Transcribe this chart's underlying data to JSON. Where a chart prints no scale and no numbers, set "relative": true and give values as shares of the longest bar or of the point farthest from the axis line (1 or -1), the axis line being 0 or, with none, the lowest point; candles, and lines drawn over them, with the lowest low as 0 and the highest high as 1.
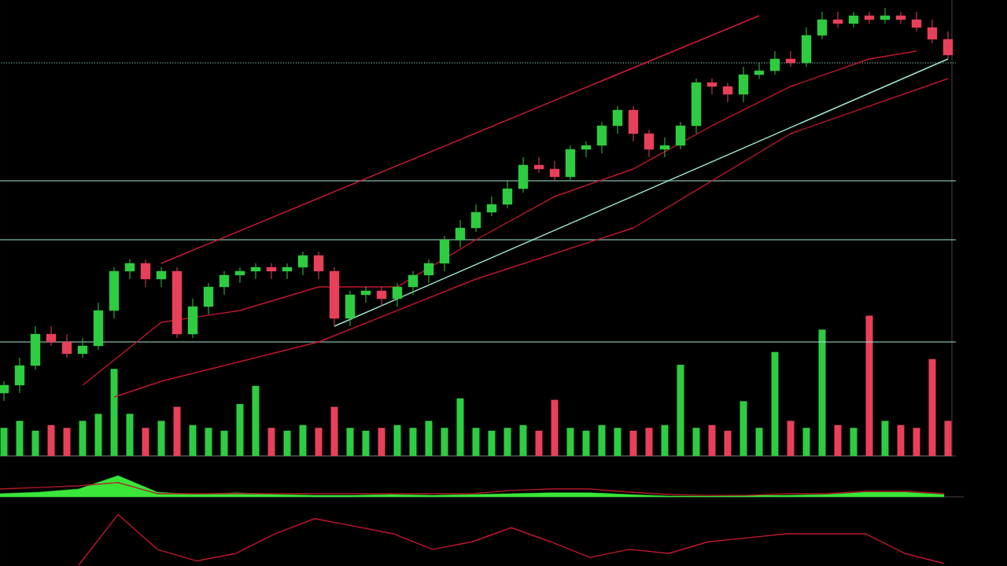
{
  "chart_data": [
    {
      "type": "candlestick",
      "relative": true,
      "categories": [
        null,
        null,
        null,
        null,
        null,
        null,
        null,
        null,
        null,
        null,
        null,
        null,
        null,
        null,
        null,
        null,
        null,
        null,
        null,
        null,
        null,
        null,
        null,
        null,
        null,
        null,
        null,
        null,
        null,
        null,
        null,
        null,
        null,
        null,
        null,
        null,
        null,
        null,
        null,
        null,
        null,
        null,
        null,
        null,
        null,
        null,
        null,
        null,
        null,
        null,
        null,
        null,
        null,
        null,
        null,
        null,
        null,
        null,
        null,
        null,
        null
      ],
      "ohlc": [
        [
          0.02,
          0.05,
          0,
          0.04
        ],
        [
          0.04,
          0.11,
          0.02,
          0.09
        ],
        [
          0.09,
          0.19,
          0.08,
          0.17
        ],
        [
          0.17,
          0.19,
          0.14,
          0.15
        ],
        [
          0.15,
          0.17,
          0.11,
          0.12
        ],
        [
          0.12,
          0.16,
          0.11,
          0.14
        ],
        [
          0.14,
          0.25,
          0.13,
          0.23
        ],
        [
          0.23,
          0.34,
          0.21,
          0.33
        ],
        [
          0.33,
          0.36,
          0.31,
          0.35
        ],
        [
          0.35,
          0.36,
          0.29,
          0.31
        ],
        [
          0.31,
          0.34,
          0.29,
          0.33
        ],
        [
          0.33,
          0.34,
          0.16,
          0.17
        ],
        [
          0.17,
          0.26,
          0.16,
          0.24
        ],
        [
          0.24,
          0.3,
          0.22,
          0.29
        ],
        [
          0.29,
          0.33,
          0.27,
          0.32
        ],
        [
          0.32,
          0.34,
          0.3,
          0.33
        ],
        [
          0.33,
          0.35,
          0.31,
          0.34
        ],
        [
          0.34,
          0.35,
          0.31,
          0.33
        ],
        [
          0.33,
          0.35,
          0.31,
          0.34
        ],
        [
          0.34,
          0.38,
          0.32,
          0.37
        ],
        [
          0.37,
          0.38,
          0.31,
          0.33
        ],
        [
          0.33,
          0.34,
          0.19,
          0.21
        ],
        [
          0.21,
          0.28,
          0.19,
          0.27
        ],
        [
          0.27,
          0.29,
          0.25,
          0.28
        ],
        [
          0.28,
          0.29,
          0.24,
          0.26
        ],
        [
          0.26,
          0.3,
          0.24,
          0.29
        ],
        [
          0.29,
          0.33,
          0.27,
          0.32
        ],
        [
          0.32,
          0.36,
          0.3,
          0.35
        ],
        [
          0.35,
          0.42,
          0.33,
          0.41
        ],
        [
          0.41,
          0.46,
          0.39,
          0.44
        ],
        [
          0.44,
          0.5,
          0.43,
          0.48
        ],
        [
          0.48,
          0.52,
          0.47,
          0.5
        ],
        [
          0.5,
          0.56,
          0.49,
          0.54
        ],
        [
          0.54,
          0.62,
          0.53,
          0.6
        ],
        [
          0.6,
          0.62,
          0.58,
          0.59
        ],
        [
          0.59,
          0.61,
          0.56,
          0.57
        ],
        [
          0.57,
          0.65,
          0.56,
          0.64
        ],
        [
          0.64,
          0.66,
          0.62,
          0.65
        ],
        [
          0.65,
          0.71,
          0.63,
          0.7
        ],
        [
          0.7,
          0.75,
          0.68,
          0.74
        ],
        [
          0.74,
          0.75,
          0.66,
          0.68
        ],
        [
          0.68,
          0.69,
          0.62,
          0.64
        ],
        [
          0.64,
          0.67,
          0.62,
          0.65
        ],
        [
          0.65,
          0.71,
          0.64,
          0.7
        ],
        [
          0.7,
          0.82,
          0.68,
          0.81
        ],
        [
          0.81,
          0.82,
          0.78,
          0.8
        ],
        [
          0.8,
          0.81,
          0.76,
          0.78
        ],
        [
          0.78,
          0.85,
          0.76,
          0.83
        ],
        [
          0.83,
          0.86,
          0.82,
          0.84
        ],
        [
          0.84,
          0.89,
          0.83,
          0.87
        ],
        [
          0.87,
          0.89,
          0.85,
          0.86
        ],
        [
          0.86,
          0.95,
          0.85,
          0.93
        ],
        [
          0.93,
          0.99,
          0.92,
          0.97
        ],
        [
          0.97,
          0.99,
          0.95,
          0.96
        ],
        [
          0.96,
          0.99,
          0.95,
          0.98
        ],
        [
          0.98,
          0.99,
          0.96,
          0.97
        ],
        [
          0.97,
          1,
          0.96,
          0.98
        ],
        [
          0.98,
          0.99,
          0.96,
          0.97
        ],
        [
          0.97,
          0.99,
          0.94,
          0.95
        ],
        [
          0.95,
          0.97,
          0.91,
          0.92
        ],
        [
          0.92,
          0.94,
          0.87,
          0.88
        ]
      ],
      "colors": [
        "#2ecc40",
        "#2ecc40",
        "#2ecc40",
        "#e8405a",
        "#e8405a",
        "#2ecc40",
        "#2ecc40",
        "#2ecc40",
        "#2ecc40",
        "#e8405a",
        "#2ecc40",
        "#e8405a",
        "#2ecc40",
        "#2ecc40",
        "#2ecc40",
        "#2ecc40",
        "#2ecc40",
        "#e8405a",
        "#2ecc40",
        "#2ecc40",
        "#e8405a",
        "#e8405a",
        "#2ecc40",
        "#2ecc40",
        "#e8405a",
        "#2ecc40",
        "#2ecc40",
        "#2ecc40",
        "#2ecc40",
        "#2ecc40",
        "#2ecc40",
        "#2ecc40",
        "#2ecc40",
        "#2ecc40",
        "#e8405a",
        "#e8405a",
        "#2ecc40",
        "#2ecc40",
        "#2ecc40",
        "#2ecc40",
        "#e8405a",
        "#e8405a",
        "#2ecc40",
        "#2ecc40",
        "#2ecc40",
        "#e8405a",
        "#e8405a",
        "#2ecc40",
        "#2ecc40",
        "#2ecc40",
        "#e8405a",
        "#2ecc40",
        "#2ecc40",
        "#e8405a",
        "#2ecc40",
        "#e8405a",
        "#2ecc40",
        "#e8405a",
        "#e8405a",
        "#e8405a",
        "#e8405a"
      ],
      "series": [
        {
          "type": "line",
          "color": "#d01c3c",
          "values": [
            null,
            null,
            null,
            null,
            null,
            null,
            null,
            null,
            null,
            null,
            0.35,
            null,
            null,
            null,
            null,
            null,
            null,
            null,
            null,
            null,
            null,
            null,
            null,
            null,
            null,
            null,
            null,
            null,
            null,
            null,
            null,
            null,
            null,
            null,
            null,
            null,
            null,
            null,
            null,
            null,
            null,
            null,
            null,
            null,
            null,
            null,
            null,
            null,
            0.98,
            null,
            null,
            null,
            null,
            null,
            null,
            null,
            null,
            null,
            null,
            null,
            null
          ]
        },
        {
          "type": "line",
          "color": "#9fe8d4",
          "values": [
            null,
            null,
            null,
            null,
            null,
            null,
            null,
            null,
            null,
            null,
            null,
            null,
            null,
            null,
            null,
            null,
            null,
            null,
            null,
            null,
            null,
            0.19,
            null,
            null,
            null,
            null,
            null,
            null,
            null,
            null,
            null,
            null,
            null,
            null,
            null,
            null,
            null,
            null,
            null,
            null,
            null,
            null,
            null,
            null,
            null,
            null,
            null,
            null,
            null,
            null,
            null,
            null,
            null,
            null,
            null,
            null,
            null,
            null,
            null,
            null,
            0.87
          ]
        },
        {
          "type": "line",
          "color": "#c0182f",
          "values": [
            null,
            null,
            null,
            null,
            null,
            0.04,
            null,
            null,
            null,
            null,
            0.2,
            null,
            null,
            null,
            null,
            0.23,
            null,
            null,
            null,
            null,
            0.29,
            null,
            null,
            null,
            null,
            0.29,
            null,
            null,
            null,
            null,
            0.41,
            null,
            null,
            null,
            null,
            0.52,
            null,
            null,
            null,
            null,
            0.59,
            null,
            null,
            null,
            null,
            0.7,
            null,
            null,
            null,
            null,
            0.8,
            null,
            null,
            null,
            null,
            0.87,
            null,
            null,
            0.89,
            null,
            null
          ]
        },
        {
          "type": "line",
          "color": "#c0182f",
          "values": [
            null,
            null,
            null,
            null,
            null,
            null,
            null,
            0.01,
            null,
            null,
            0.05,
            null,
            null,
            null,
            null,
            null,
            null,
            null,
            null,
            null,
            0.15,
            null,
            null,
            null,
            null,
            null,
            null,
            null,
            null,
            null,
            0.31,
            null,
            null,
            null,
            null,
            null,
            null,
            null,
            null,
            null,
            0.44,
            null,
            null,
            null,
            null,
            null,
            null,
            null,
            null,
            null,
            0.68,
            null,
            null,
            null,
            null,
            null,
            null,
            null,
            null,
            null,
            0.82
          ]
        }
      ],
      "ref_lines": [
        {
          "axis": "y",
          "value": 0.41,
          "color": "#9fe8d4"
        },
        {
          "axis": "y",
          "value": 0.56,
          "color": "#9fe8d4"
        },
        {
          "axis": "y",
          "value": 0.15,
          "color": "#9fe8d4"
        },
        {
          "axis": "y",
          "value": 0.86,
          "color": "#9fe8d4",
          "line_style": "dotted"
        }
      ]
    },
    {
      "type": "bar",
      "relative": true,
      "categories": [
        null,
        null,
        null,
        null,
        null,
        null,
        null,
        null,
        null,
        null,
        null,
        null,
        null,
        null,
        null,
        null,
        null,
        null,
        null,
        null,
        null,
        null,
        null,
        null,
        null,
        null,
        null,
        null,
        null,
        null,
        null,
        null,
        null,
        null,
        null,
        null,
        null,
        null,
        null,
        null,
        null,
        null,
        null,
        null,
        null,
        null,
        null,
        null,
        null,
        null,
        null,
        null,
        null,
        null,
        null,
        null,
        null,
        null,
        null,
        null,
        null
      ],
      "values": [
        0.2,
        0.25,
        0.18,
        0.22,
        0.2,
        0.25,
        0.3,
        0.62,
        0.3,
        0.2,
        0.25,
        0.35,
        0.22,
        0.2,
        0.18,
        0.37,
        0.5,
        0.2,
        0.18,
        0.22,
        0.2,
        0.35,
        0.2,
        0.18,
        0.2,
        0.22,
        0.2,
        0.25,
        0.2,
        0.41,
        0.2,
        0.18,
        0.2,
        0.22,
        0.18,
        0.4,
        0.2,
        0.18,
        0.22,
        0.2,
        0.18,
        0.2,
        0.22,
        0.65,
        0.2,
        0.22,
        0.18,
        0.39,
        0.2,
        0.74,
        0.25,
        0.2,
        0.9,
        0.22,
        0.2,
        1,
        0.25,
        0.22,
        0.2,
        0.69,
        0.25
      ],
      "colors": [
        "#2ecc40",
        "#2ecc40",
        "#2ecc40",
        "#e8405a",
        "#e8405a",
        "#2ecc40",
        "#2ecc40",
        "#2ecc40",
        "#2ecc40",
        "#e8405a",
        "#2ecc40",
        "#e8405a",
        "#2ecc40",
        "#2ecc40",
        "#2ecc40",
        "#2ecc40",
        "#2ecc40",
        "#e8405a",
        "#2ecc40",
        "#2ecc40",
        "#e8405a",
        "#e8405a",
        "#2ecc40",
        "#2ecc40",
        "#e8405a",
        "#2ecc40",
        "#2ecc40",
        "#2ecc40",
        "#2ecc40",
        "#2ecc40",
        "#2ecc40",
        "#2ecc40",
        "#2ecc40",
        "#2ecc40",
        "#e8405a",
        "#e8405a",
        "#2ecc40",
        "#2ecc40",
        "#2ecc40",
        "#2ecc40",
        "#e8405a",
        "#e8405a",
        "#2ecc40",
        "#2ecc40",
        "#2ecc40",
        "#e8405a",
        "#e8405a",
        "#2ecc40",
        "#2ecc40",
        "#2ecc40",
        "#e8405a",
        "#2ecc40",
        "#2ecc40",
        "#e8405a",
        "#2ecc40",
        "#e8405a",
        "#2ecc40",
        "#e8405a",
        "#e8405a",
        "#e8405a",
        "#e8405a"
      ]
    },
    {
      "type": "area",
      "relative": true,
      "categories": [
        null,
        null,
        null,
        null,
        null,
        null,
        null,
        null,
        null,
        null,
        null,
        null,
        null,
        null,
        null,
        null,
        null,
        null,
        null,
        null,
        null,
        null,
        null,
        null,
        null
      ],
      "series": [
        {
          "type": "area",
          "color": "#39e639",
          "values": [
            0.15,
            0.22,
            0.37,
            1,
            0.22,
            0.11,
            0.19,
            0.11,
            0.07,
            0.07,
            0.11,
            0.07,
            0.11,
            0.15,
            0.19,
            0.19,
            0.11,
            0.04,
            0.04,
            0.07,
            0.07,
            0.11,
            0.22,
            0.22,
            0.11
          ]
        },
        {
          "type": "line",
          "color": "#b01a2a",
          "values": [
            0.37,
            0.44,
            0.52,
            0.67,
            0.15,
            null,
            null,
            null,
            null,
            null,
            null,
            null,
            0.15,
            0.3,
            0.37,
            0.37,
            0.22,
            0.11,
            0.07,
            0.07,
            0.15,
            0.15,
            0.26,
            0.26,
            0.15
          ]
        }
      ]
    },
    {
      "type": "line",
      "relative": true,
      "categories": [
        null,
        null,
        null,
        null,
        null,
        null,
        null,
        null,
        null,
        null,
        null,
        null,
        null,
        null,
        null,
        null,
        null,
        null,
        null,
        null,
        null,
        null,
        null,
        null,
        null
      ],
      "series": [
        {
          "color": "#c0182f",
          "values": [
            null,
            null,
            0,
            1,
            0.31,
            0.08,
            0.23,
            0.62,
            0.92,
            0.77,
            0.62,
            0.31,
            0.46,
            0.74,
            0.46,
            0.15,
            0.31,
            0.23,
            0.46,
            0.54,
            0.62,
            0.62,
            0.62,
            0.23,
            0.03
          ]
        }
      ]
    }
  ]
}
